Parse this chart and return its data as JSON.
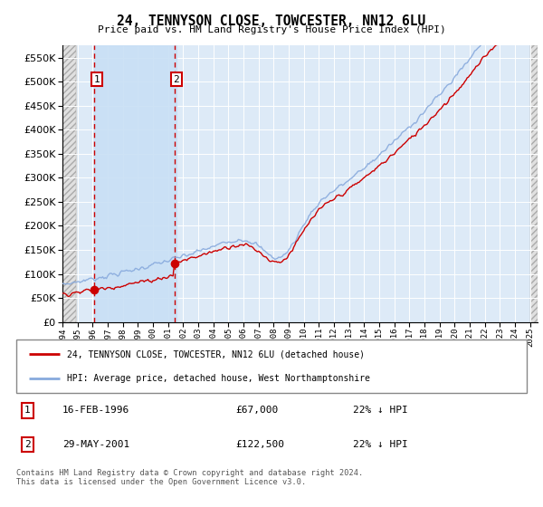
{
  "title": "24, TENNYSON CLOSE, TOWCESTER, NN12 6LU",
  "subtitle": "Price paid vs. HM Land Registry's House Price Index (HPI)",
  "legend_entry1": "24, TENNYSON CLOSE, TOWCESTER, NN12 6LU (detached house)",
  "legend_entry2": "HPI: Average price, detached house, West Northamptonshire",
  "table_rows": [
    {
      "num": "1",
      "date": "16-FEB-1996",
      "price": "£67,000",
      "hpi": "22% ↓ HPI"
    },
    {
      "num": "2",
      "date": "29-MAY-2001",
      "price": "£122,500",
      "hpi": "22% ↓ HPI"
    }
  ],
  "footnote": "Contains HM Land Registry data © Crown copyright and database right 2024.\nThis data is licensed under the Open Government Licence v3.0.",
  "sale1_year": 1996.12,
  "sale1_price": 67000,
  "sale2_year": 2001.41,
  "sale2_price": 122500,
  "xmin": 1994,
  "xmax": 2025.5,
  "ymin": 0,
  "ymax": 575000,
  "yticks": [
    0,
    50000,
    100000,
    150000,
    200000,
    250000,
    300000,
    350000,
    400000,
    450000,
    500000,
    550000
  ],
  "grid_color": "#cccccc",
  "sale_color": "#cc0000",
  "hpi_color": "#88aadd",
  "bg_plot": "#ddeaf7",
  "bg_hatch": "#e0e0e0",
  "hatch_region_left_end": 1994.92,
  "hatch_region_right_start": 2025.0,
  "sale_shade_start": 1996.12,
  "sale_shade_end": 2001.58
}
